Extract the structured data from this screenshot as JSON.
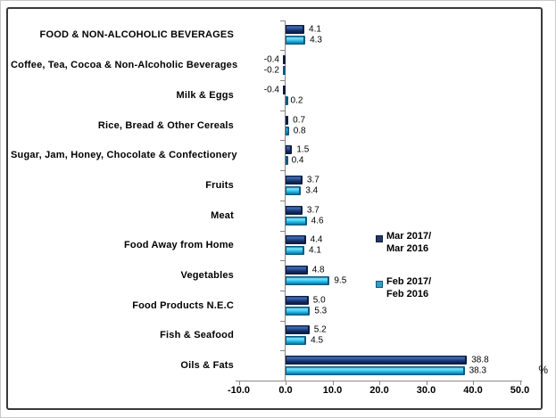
{
  "chart_data": {
    "type": "bar",
    "orientation": "horizontal",
    "title": "",
    "categories": [
      "FOOD & NON-ALCOHOLIC BEVERAGES",
      "Coffee, Tea, Cocoa & Non-Alcoholic Beverages",
      "Milk & Eggs",
      "Rice, Bread & Other Cereals",
      "Sugar, Jam, Honey, Chocolate & Confectionery",
      "Fruits",
      "Meat",
      "Food Away from Home",
      "Vegetables",
      "Food Products N.E.C",
      "Fish & Seafood",
      "Oils & Fats"
    ],
    "series": [
      {
        "name": "Mar 2017/\nMar 2016",
        "color": "#1F3864",
        "values": [
          4.1,
          -0.4,
          -0.4,
          0.7,
          1.5,
          3.7,
          3.7,
          4.4,
          4.8,
          5.0,
          5.2,
          38.8
        ]
      },
      {
        "name": "Feb 2017/\nFeb 2016",
        "color": "#2E9EC9",
        "values": [
          4.3,
          -0.2,
          0.2,
          0.8,
          0.4,
          3.4,
          4.6,
          4.1,
          9.5,
          5.3,
          4.5,
          38.3
        ]
      }
    ],
    "xlim": [
      -10.0,
      50.0
    ],
    "x_ticks": [
      "-10.0",
      "0.0",
      "10.0",
      "20.0",
      "30.0",
      "40.0",
      "50.0"
    ],
    "axis_unit_label": "%",
    "grid": false,
    "legend_position": "right-middle",
    "value_label_decimals": 1
  }
}
